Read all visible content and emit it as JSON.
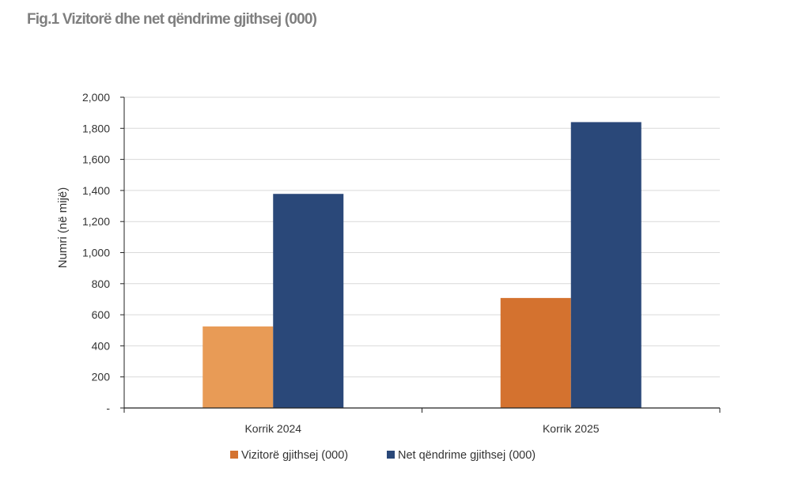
{
  "figure": {
    "title": "Fig.1 Vizitorë dhe net qëndrime gjithsej (000)"
  },
  "colors": {
    "visitors_2024": "#E89B56",
    "visitors_2025": "#D4722F",
    "net_stays": "#2A4879",
    "gridline": "#D9D9D9",
    "axis": "#222222"
  },
  "chart_data": {
    "type": "bar",
    "title": "Fig.1 Vizitorë dhe net qëndrime gjithsej (000)",
    "categories": [
      "Korrik 2024",
      "Korrik 2025"
    ],
    "series": [
      {
        "name": "Vizitorë gjithsej (000)",
        "values": [
          525,
          708
        ]
      },
      {
        "name": "Net qëndrime gjithsej (000)",
        "values": [
          1378,
          1840
        ]
      }
    ],
    "xlabel": "",
    "ylabel": "Numri (në mijë)",
    "ylim": [
      0,
      2000
    ],
    "yticks": [
      0,
      200,
      400,
      600,
      800,
      1000,
      1200,
      1400,
      1600,
      1800,
      2000
    ],
    "ytick_labels": [
      "-",
      "200",
      "400",
      "600",
      "800",
      "1,000",
      "1,200",
      "1,400",
      "1,600",
      "1,800",
      "2,000"
    ],
    "grid": true,
    "legend": "bottom"
  }
}
